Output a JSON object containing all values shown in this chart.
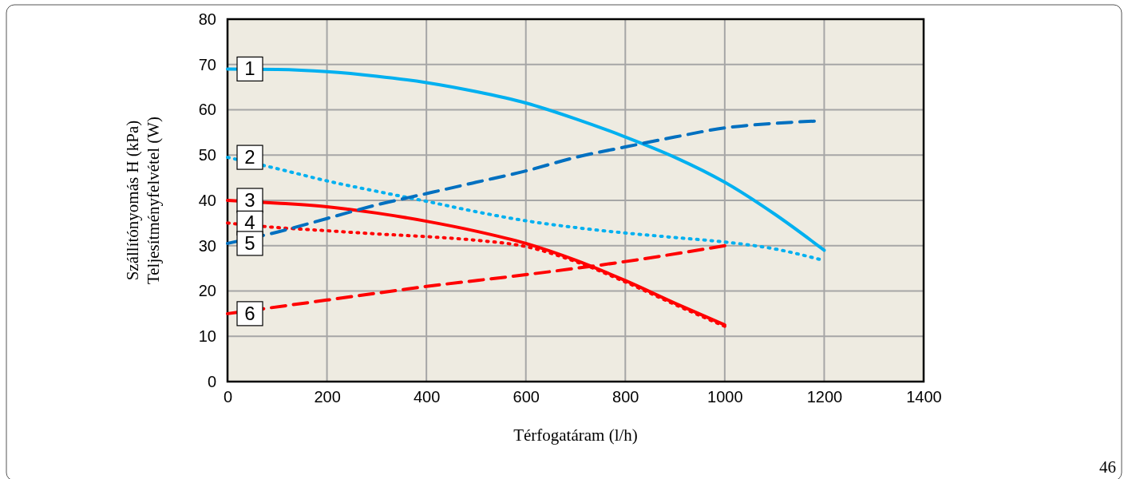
{
  "chart_data": {
    "type": "line",
    "xlabel": "Térfogatáram (l/h)",
    "ylabel": "Szállítónyomás H (kPa)\nTeljesítményfelvétel (W)",
    "xlim": [
      0,
      1400
    ],
    "xticks": [
      0,
      200,
      400,
      600,
      800,
      1000,
      1200,
      1400
    ],
    "ylim": [
      0,
      80
    ],
    "yticks": [
      0,
      10,
      20,
      30,
      40,
      50,
      60,
      70,
      80
    ],
    "grid": true,
    "legend": false,
    "marker": "none",
    "annotations": [
      "46"
    ],
    "series": [
      {
        "name": "1",
        "color": "#00b0f0",
        "line_style": "solid",
        "x": [
          0,
          100,
          200,
          300,
          400,
          500,
          600,
          700,
          800,
          900,
          1000,
          1100,
          1200
        ],
        "values": [
          69,
          68.9,
          68.4,
          67.4,
          66,
          64,
          61.5,
          58,
          54,
          49.5,
          44,
          37,
          29
        ]
      },
      {
        "name": "2",
        "color": "#00b0f0",
        "line_style": "dotted",
        "x": [
          0,
          100,
          200,
          300,
          400,
          500,
          600,
          700,
          800,
          900,
          1000,
          1100,
          1190
        ],
        "values": [
          49.5,
          47,
          44.3,
          42,
          39.8,
          37.5,
          35.5,
          34,
          32.8,
          31.8,
          30.8,
          29.3,
          27
        ]
      },
      {
        "name": "3",
        "color": "#ff0000",
        "line_style": "solid",
        "x": [
          0,
          100,
          200,
          300,
          400,
          500,
          600,
          700,
          800,
          900,
          1000
        ],
        "values": [
          40,
          39.4,
          38.6,
          37.2,
          35.4,
          33.2,
          30.5,
          26.8,
          22.3,
          17.3,
          12.5
        ]
      },
      {
        "name": "4",
        "color": "#ff0000",
        "line_style": "dotted",
        "x": [
          0,
          100,
          200,
          300,
          400,
          500,
          600,
          700,
          800,
          900,
          1000
        ],
        "values": [
          35,
          34,
          33.3,
          32.6,
          32,
          31.2,
          29.8,
          26.5,
          22,
          17,
          12.2
        ]
      },
      {
        "name": "5",
        "color": "#0070c0",
        "line_style": "dashed",
        "x": [
          0,
          100,
          200,
          300,
          400,
          500,
          600,
          700,
          800,
          900,
          1000,
          1100,
          1180
        ],
        "values": [
          30.5,
          33,
          36,
          39,
          41.5,
          44,
          46.5,
          49.5,
          51.8,
          54,
          56,
          57,
          57.5
        ]
      },
      {
        "name": "6",
        "color": "#ff0000",
        "line_style": "dashed",
        "x": [
          0,
          200,
          400,
          600,
          800,
          1000
        ],
        "values": [
          15,
          18,
          21,
          23.6,
          26.5,
          30
        ]
      }
    ]
  }
}
